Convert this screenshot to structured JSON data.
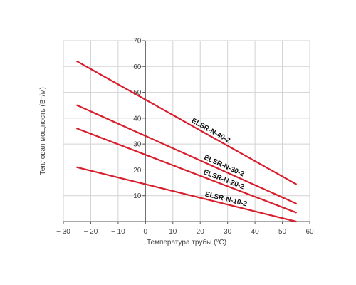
{
  "chart_data": {
    "type": "line",
    "title": "",
    "xlabel": "Температура трубы (°C)",
    "ylabel": "Тепловая мощность (Вт/м)",
    "xlim": [
      -30,
      60
    ],
    "ylim": [
      0,
      70
    ],
    "x_ticks": [
      -30,
      -20,
      -10,
      0,
      10,
      20,
      30,
      40,
      50,
      60
    ],
    "x_tick_labels": [
      "− 30",
      "− 20",
      "− 10",
      "0",
      "10",
      "20",
      "30",
      "40",
      "50",
      "60"
    ],
    "y_ticks": [
      10,
      20,
      30,
      40,
      50,
      60,
      70
    ],
    "y_tick_labels": [
      "10",
      "20",
      "30",
      "40",
      "50",
      "60",
      "70"
    ],
    "grid": true,
    "legend": "none",
    "line_color": "#d81e2c",
    "series": [
      {
        "name": "ELSR-N-40-2",
        "x": [
          -25,
          55
        ],
        "y": [
          62,
          14.5
        ]
      },
      {
        "name": "ELSR-N-30-2",
        "x": [
          -25,
          55
        ],
        "y": [
          45,
          7
        ]
      },
      {
        "name": "ELSR-N-20-2",
        "x": [
          -25,
          55
        ],
        "y": [
          36,
          3.5
        ]
      },
      {
        "name": "ELSR-N-10-2",
        "x": [
          -25,
          55
        ],
        "y": [
          21,
          0
        ]
      }
    ]
  }
}
